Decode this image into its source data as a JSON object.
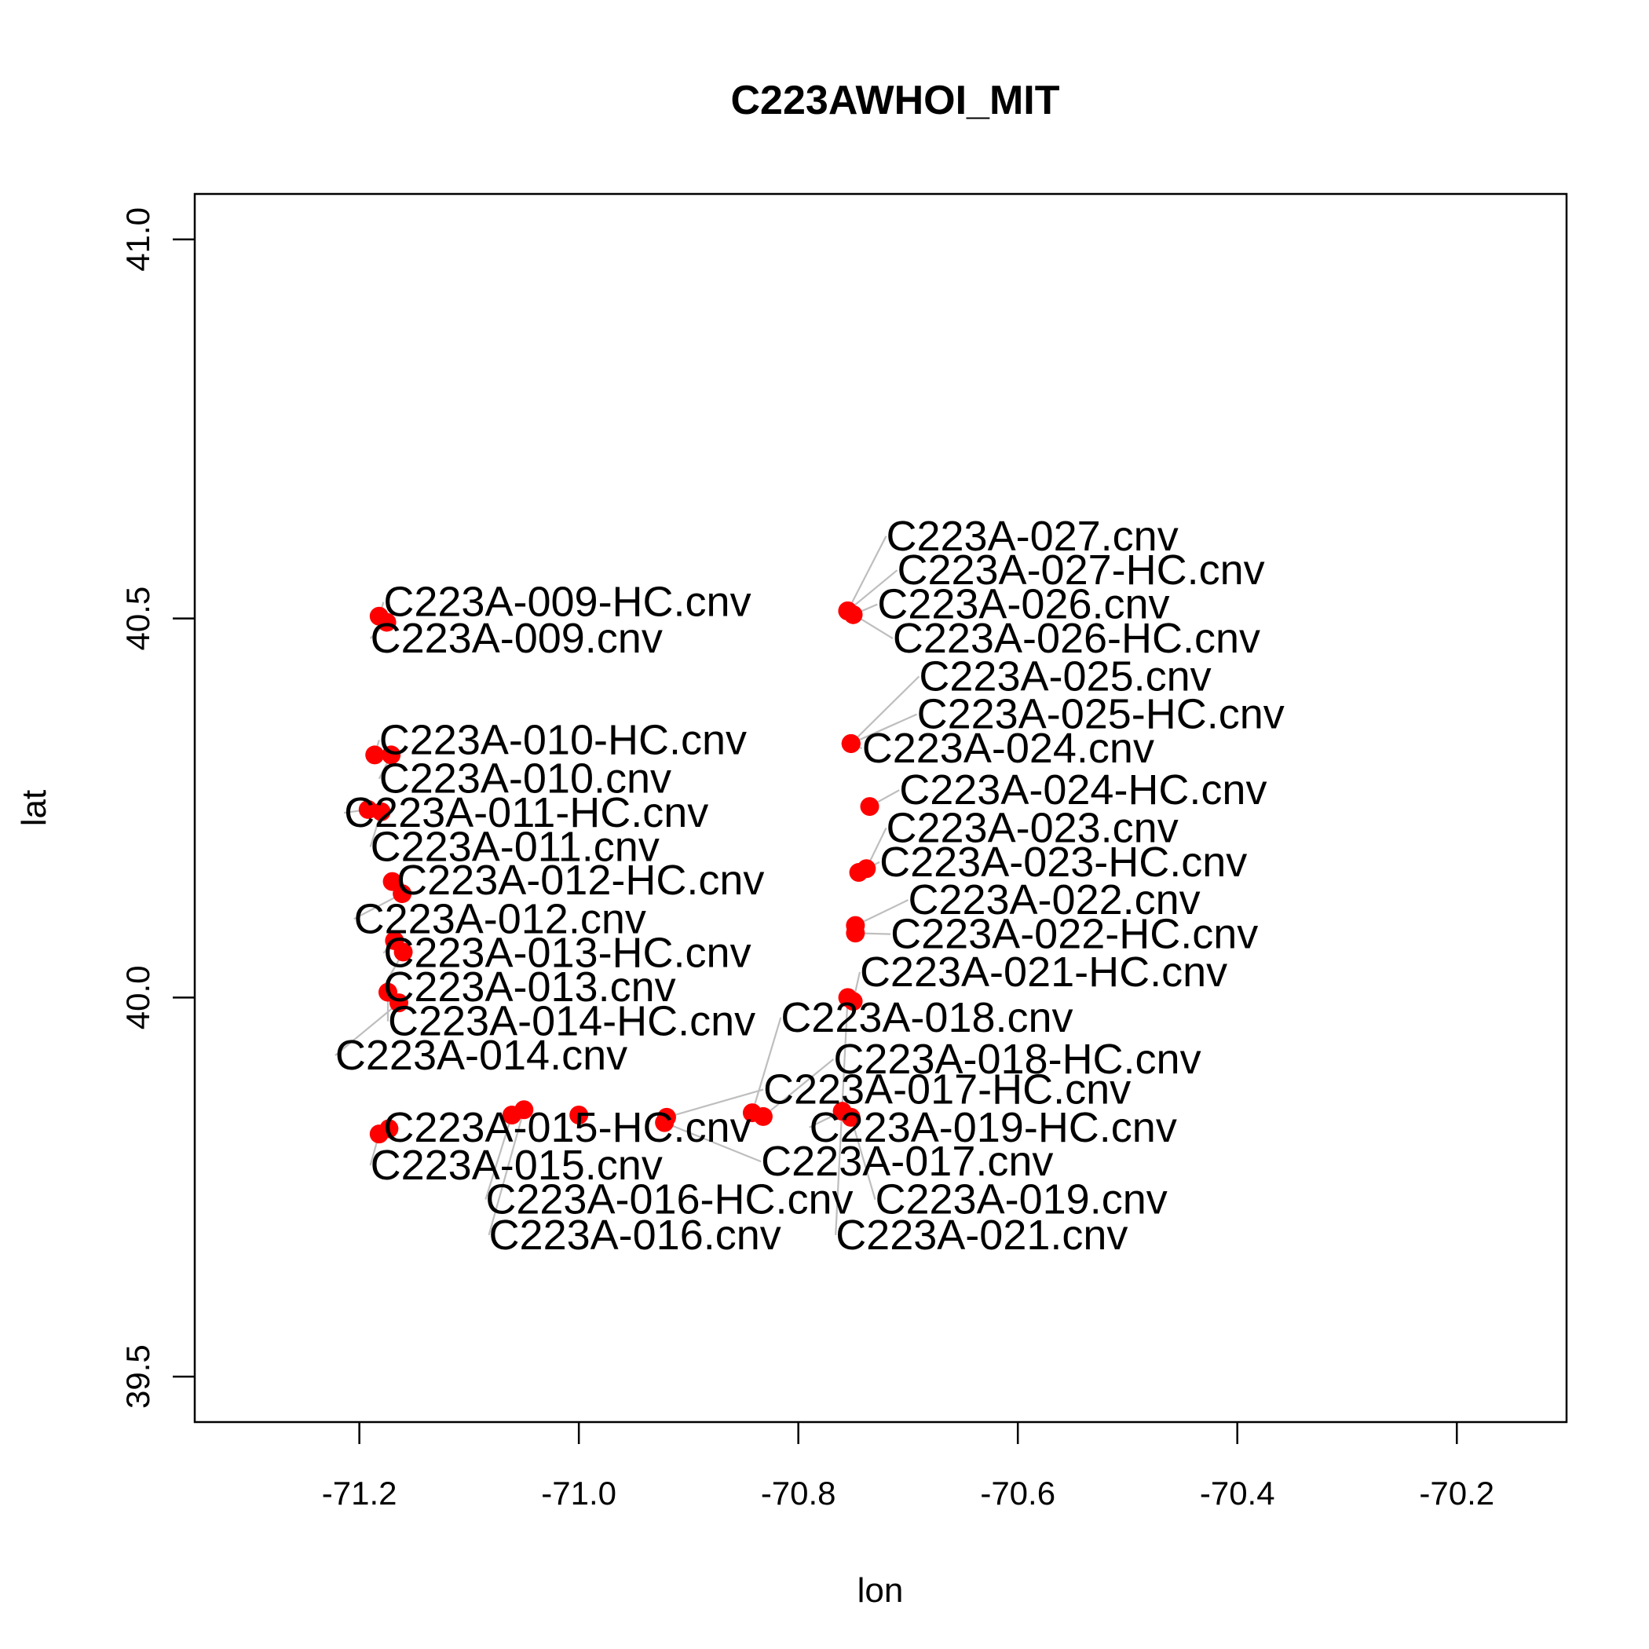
{
  "chart_data": {
    "type": "scatter",
    "title": "C223AWHOI_MIT",
    "xlabel": "lon",
    "ylabel": "lat",
    "xlim": [
      -71.35,
      -70.1
    ],
    "ylim": [
      39.44,
      41.06
    ],
    "xticks": [
      -71.2,
      -71.0,
      -70.8,
      -70.6,
      -70.4,
      -70.2
    ],
    "yticks": [
      39.5,
      40.0,
      40.5,
      41.0
    ],
    "xtick_labels": [
      "-71.2",
      "-71.0",
      "-70.8",
      "-70.6",
      "-70.4",
      "-70.2"
    ],
    "ytick_labels": [
      "39.5",
      "40.0",
      "40.5",
      "41.0"
    ],
    "point_color": "#ff0000",
    "leader_color": "#bebebe",
    "grid": false,
    "points": [
      {
        "label": "C223A-009-HC.cnv",
        "lon": -71.182,
        "lat": 40.503,
        "label_lon": -71.178,
        "label_lat": 40.503
      },
      {
        "label": "C223A-009.cnv",
        "lon": -71.175,
        "lat": 40.495,
        "label_lon": -71.19,
        "label_lat": 40.455
      },
      {
        "label": "C223A-010-HC.cnv",
        "lon": -71.186,
        "lat": 40.32,
        "label_lon": -71.182,
        "label_lat": 40.321
      },
      {
        "label": "C223A-010.cnv",
        "lon": -71.171,
        "lat": 40.32,
        "label_lon": -71.182,
        "label_lat": 40.27
      },
      {
        "label": "C223A-011-HC.cnv",
        "lon": -71.192,
        "lat": 40.248,
        "label_lon": -71.214,
        "label_lat": 40.225
      },
      {
        "label": "C223A-011.cnv",
        "lon": -71.18,
        "lat": 40.245,
        "label_lon": -71.19,
        "label_lat": 40.18
      },
      {
        "label": "C223A-012-HC.cnv",
        "lon": -71.17,
        "lat": 40.153,
        "label_lon": -71.166,
        "label_lat": 40.136
      },
      {
        "label": "C223A-012.cnv",
        "lon": -71.161,
        "lat": 40.137,
        "label_lon": -71.205,
        "label_lat": 40.085
      },
      {
        "label": "C223A-013-HC.cnv",
        "lon": -71.168,
        "lat": 40.075,
        "label_lon": -71.178,
        "label_lat": 40.04
      },
      {
        "label": "C223A-013.cnv",
        "lon": -71.16,
        "lat": 40.06,
        "label_lon": -71.178,
        "label_lat": 39.995
      },
      {
        "label": "C223A-014-HC.cnv",
        "lon": -71.174,
        "lat": 40.007,
        "label_lon": -71.174,
        "label_lat": 39.95
      },
      {
        "label": "C223A-014.cnv",
        "lon": -71.164,
        "lat": 39.993,
        "label_lon": -71.222,
        "label_lat": 39.905
      },
      {
        "label": "C223A-015-HC.cnv",
        "lon": -71.173,
        "lat": 39.827,
        "label_lon": -71.178,
        "label_lat": 39.81
      },
      {
        "label": "C223A-015.cnv",
        "lon": -71.182,
        "lat": 39.82,
        "label_lon": -71.19,
        "label_lat": 39.76
      },
      {
        "label": "C223A-016-HC.cnv",
        "lon": -71.061,
        "lat": 39.845,
        "label_lon": -71.085,
        "label_lat": 39.715
      },
      {
        "label": "C223A-016.cnv",
        "lon": -71.05,
        "lat": 39.852,
        "label_lon": -71.082,
        "label_lat": 39.668
      },
      {
        "label": "C223A-015-HC.cnv",
        "lon": -71.0,
        "lat": 39.845,
        "label_lon": null,
        "label_lat": null
      },
      {
        "label": "C223A-017-HC.cnv",
        "lon": -70.92,
        "lat": 39.842,
        "label_lon": -70.832,
        "label_lat": 39.86
      },
      {
        "label": "C223A-017.cnv",
        "lon": -70.922,
        "lat": 39.835,
        "label_lon": -70.834,
        "label_lat": 39.765
      },
      {
        "label": "C223A-018.cnv",
        "lon": -70.842,
        "lat": 39.848,
        "label_lon": -70.816,
        "label_lat": 39.955
      },
      {
        "label": "C223A-018-HC.cnv",
        "lon": -70.832,
        "lat": 39.843,
        "label_lon": -70.768,
        "label_lat": 39.9
      },
      {
        "label": "C223A-019-HC.cnv",
        "lon": -70.76,
        "lat": 39.85,
        "label_lon": -70.79,
        "label_lat": 39.81
      },
      {
        "label": "C223A-019.cnv",
        "lon": -70.752,
        "lat": 39.842,
        "label_lon": -70.73,
        "label_lat": 39.715
      },
      {
        "label": "C223A-021.cnv",
        "lon": -70.755,
        "lat": 40.0,
        "label_lon": -70.766,
        "label_lat": 39.668
      },
      {
        "label": "C223A-021-HC.cnv",
        "lon": -70.75,
        "lat": 39.995,
        "label_lon": -70.744,
        "label_lat": 40.015
      },
      {
        "label": "C223A-022-HC.cnv",
        "lon": -70.748,
        "lat": 40.085,
        "label_lon": -70.716,
        "label_lat": 40.065
      },
      {
        "label": "C223A-022.cnv",
        "lon": -70.748,
        "lat": 40.095,
        "label_lon": -70.7,
        "label_lat": 40.11
      },
      {
        "label": "C223A-023-HC.cnv",
        "lon": -70.745,
        "lat": 40.165,
        "label_lon": -70.726,
        "label_lat": 40.16
      },
      {
        "label": "C223A-023.cnv",
        "lon": -70.738,
        "lat": 40.17,
        "label_lon": -70.72,
        "label_lat": 40.205
      },
      {
        "label": "C223A-024-HC.cnv",
        "lon": -70.735,
        "lat": 40.252,
        "label_lon": -70.708,
        "label_lat": 40.255
      },
      {
        "label": "C223A-024.cnv",
        "lon": -70.752,
        "lat": 40.335,
        "label_lon": -70.742,
        "label_lat": 40.31
      },
      {
        "label": "C223A-025-HC.cnv",
        "lon": -70.752,
        "lat": 40.335,
        "label_lon": -70.692,
        "label_lat": 40.355
      },
      {
        "label": "C223A-025.cnv",
        "lon": -70.752,
        "lat": 40.335,
        "label_lon": -70.69,
        "label_lat": 40.405
      },
      {
        "label": "C223A-026-HC.cnv",
        "lon": -70.755,
        "lat": 40.51,
        "label_lon": -70.714,
        "label_lat": 40.455
      },
      {
        "label": "C223A-026.cnv",
        "lon": -70.75,
        "lat": 40.505,
        "label_lon": -70.728,
        "label_lat": 40.5
      },
      {
        "label": "C223A-027-HC.cnv",
        "lon": -70.755,
        "lat": 40.51,
        "label_lon": -70.71,
        "label_lat": 40.545
      },
      {
        "label": "C223A-027.cnv",
        "lon": -70.755,
        "lat": 40.51,
        "label_lon": -70.72,
        "label_lat": 40.59
      }
    ]
  }
}
